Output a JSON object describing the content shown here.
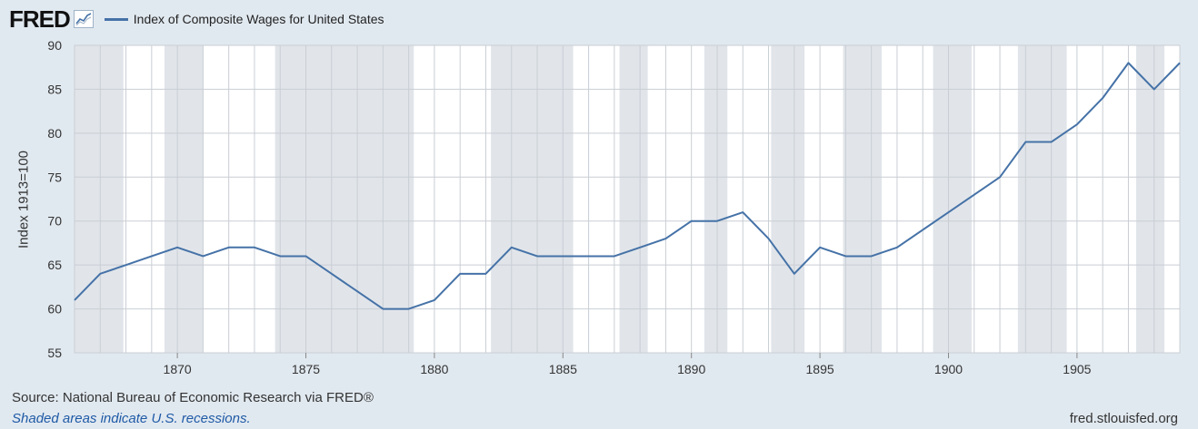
{
  "header": {
    "logo_text": "FRED",
    "logo_icon": "line-chart-icon",
    "legend_label": "Index of Composite Wages for United States"
  },
  "colors": {
    "background": "#e1e9f0",
    "plot_background": "#ffffff",
    "recession_shading": "#e1e5ea",
    "series_line": "#4572a7",
    "grid": "#c9ced4",
    "footer_link": "#1f5aa6"
  },
  "footer": {
    "source": "Source: National Bureau of Economic Research via FRED®",
    "note": "Shaded areas indicate U.S. recessions.",
    "url": "fred.stlouisfed.org"
  },
  "chart_data": {
    "type": "line",
    "title": "",
    "ylabel": "Index 1913=100",
    "xlabel": "",
    "xlim": [
      1866,
      1909
    ],
    "ylim": [
      55,
      90
    ],
    "grid": true,
    "legend_position": "top-left",
    "x_ticks": [
      1870,
      1875,
      1880,
      1885,
      1890,
      1895,
      1900,
      1905
    ],
    "y_ticks": [
      55,
      60,
      65,
      70,
      75,
      80,
      85,
      90
    ],
    "recessions": [
      [
        1866,
        1867.9
      ],
      [
        1869.5,
        1871
      ],
      [
        1873.8,
        1879.2
      ],
      [
        1882.2,
        1885.4
      ],
      [
        1887.2,
        1888.3
      ],
      [
        1890.5,
        1891.4
      ],
      [
        1893.1,
        1894.4
      ],
      [
        1895.9,
        1897.4
      ],
      [
        1899.4,
        1900.9
      ],
      [
        1902.7,
        1904.6
      ],
      [
        1907.3,
        1908.4
      ]
    ],
    "series": [
      {
        "name": "Index of Composite Wages for United States",
        "x": [
          1866,
          1867,
          1868,
          1869,
          1870,
          1871,
          1872,
          1873,
          1874,
          1875,
          1876,
          1877,
          1878,
          1879,
          1880,
          1881,
          1882,
          1883,
          1884,
          1885,
          1886,
          1887,
          1888,
          1889,
          1890,
          1891,
          1892,
          1893,
          1894,
          1895,
          1896,
          1897,
          1898,
          1899,
          1900,
          1901,
          1902,
          1903,
          1904,
          1905,
          1906,
          1907,
          1908,
          1909
        ],
        "values": [
          61,
          64,
          65,
          66,
          67,
          66,
          67,
          67,
          66,
          66,
          64,
          62,
          60,
          60,
          61,
          64,
          64,
          67,
          66,
          66,
          66,
          66,
          67,
          68,
          70,
          70,
          71,
          68,
          64,
          67,
          66,
          66,
          67,
          69,
          71,
          73,
          75,
          79,
          79,
          81,
          84,
          88,
          85,
          88
        ]
      }
    ]
  }
}
